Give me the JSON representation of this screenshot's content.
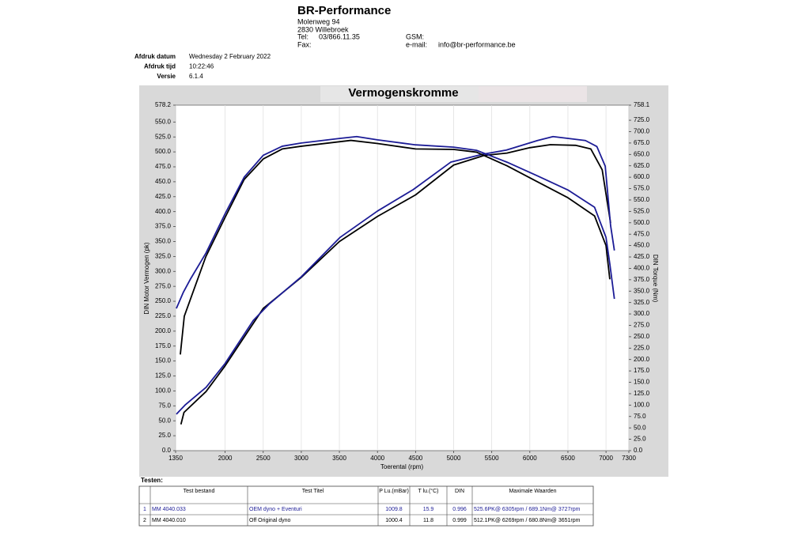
{
  "header": {
    "company": "BR-Performance",
    "street": "Molenweg 94",
    "city": "2830 Willebroek",
    "tel_label": "Tel:",
    "tel": "03/866.11.35",
    "fax_label": "Fax:",
    "gsm_label": "GSM:",
    "email_label": "e-mail:",
    "email": "info@br-performance.be"
  },
  "meta": {
    "rows": [
      [
        "Afdruk datum",
        "Wednesday 2 February 2022"
      ],
      [
        "Afdruk tijd",
        "10:22:46"
      ],
      [
        "Versie",
        "6.1.4"
      ]
    ]
  },
  "chart_data": {
    "type": "line",
    "title": "Vermogenskromme",
    "xlabel": "Toerental (rpm)",
    "ylabel": "DIN Motor Vermogen (pk)",
    "y2label": "DIN Torque (Nm)",
    "grid": true,
    "xlim": [
      1350,
      7300
    ],
    "xticks": [
      1350,
      2000,
      2500,
      3000,
      3500,
      4000,
      4500,
      5000,
      5500,
      6000,
      6500,
      7000,
      7300
    ],
    "ylim": [
      0,
      578.2
    ],
    "yticks": [
      {
        "value": 0,
        "label": "0.0"
      },
      {
        "value": 25,
        "label": "25.0"
      },
      {
        "value": 50,
        "label": "50.0"
      },
      {
        "value": 75,
        "label": "75.0"
      },
      {
        "value": 100,
        "label": "100.0"
      },
      {
        "value": 125,
        "label": "125.0"
      },
      {
        "value": 150,
        "label": "150.0"
      },
      {
        "value": 175,
        "label": "175.0"
      },
      {
        "value": 200,
        "label": "200.0"
      },
      {
        "value": 225,
        "label": "225.0"
      },
      {
        "value": 250,
        "label": "250.0"
      },
      {
        "value": 275,
        "label": "275.0"
      },
      {
        "value": 300,
        "label": "300.0"
      },
      {
        "value": 325,
        "label": "325.0"
      },
      {
        "value": 350,
        "label": "350.0"
      },
      {
        "value": 375,
        "label": "375.0"
      },
      {
        "value": 400,
        "label": "400.0"
      },
      {
        "value": 425,
        "label": "425.0"
      },
      {
        "value": 450,
        "label": "450.0"
      },
      {
        "value": 475,
        "label": "475.0"
      },
      {
        "value": 500,
        "label": "500.0"
      },
      {
        "value": 525,
        "label": "525.0"
      },
      {
        "value": 550,
        "label": "550.0"
      },
      578.2
    ],
    "y2lim": [
      0,
      758.1
    ],
    "y2ticks": [
      {
        "value": 0,
        "label": "0.0"
      },
      {
        "value": 25,
        "label": "25.0"
      },
      {
        "value": 50,
        "label": "50.0"
      },
      {
        "value": 75,
        "label": "75.0"
      },
      {
        "value": 100,
        "label": "100.0"
      },
      {
        "value": 125,
        "label": "125.0"
      },
      {
        "value": 150,
        "label": "150.0"
      },
      {
        "value": 175,
        "label": "175.0"
      },
      {
        "value": 200,
        "label": "200.0"
      },
      {
        "value": 225,
        "label": "225.0"
      },
      {
        "value": 250,
        "label": "250.0"
      },
      {
        "value": 275,
        "label": "275.0"
      },
      {
        "value": 300,
        "label": "300.0"
      },
      {
        "value": 325,
        "label": "325.0"
      },
      {
        "value": 350,
        "label": "350.0"
      },
      {
        "value": 375,
        "label": "375.0"
      },
      {
        "value": 400,
        "label": "400.0"
      },
      {
        "value": 425,
        "label": "425.0"
      },
      {
        "value": 450,
        "label": "450.0"
      },
      {
        "value": 475,
        "label": "475.0"
      },
      {
        "value": 500,
        "label": "500.0"
      },
      {
        "value": 525,
        "label": "525.0"
      },
      {
        "value": 550,
        "label": "550.0"
      },
      {
        "value": 575,
        "label": "575.0"
      },
      {
        "value": 600,
        "label": "600.0"
      },
      {
        "value": 625,
        "label": "625.0"
      },
      {
        "value": 650,
        "label": "650.0"
      },
      {
        "value": 675,
        "label": "675.0"
      },
      {
        "value": 700,
        "label": "700.0"
      },
      {
        "value": 725,
        "label": "725.0"
      },
      758.1
    ],
    "series": [
      {
        "color": "#000000",
        "x": [
          1420,
          1460,
          1750,
          2000,
          2500,
          3000,
          3500,
          4000,
          4500,
          5000,
          5400,
          5700,
          6000,
          6269,
          6600,
          6800,
          6950,
          7060
        ],
        "values": [
          44,
          64,
          99,
          142,
          238,
          290,
          350,
          392,
          428,
          478,
          494,
          498,
          507,
          512,
          511,
          505,
          470,
          381
        ]
      },
      {
        "color": "#1c1c96",
        "x": [
          1360,
          1480,
          1750,
          2000,
          2370,
          2575,
          3000,
          3510,
          4000,
          4470,
          4964,
          5380,
          5690,
          6100,
          6305,
          6730,
          6880,
          6990,
          7060,
          7110
        ],
        "values": [
          61,
          77,
          106,
          146,
          218,
          245,
          291,
          357,
          401,
          437,
          483,
          496,
          503,
          519,
          525.6,
          519,
          509,
          476,
          377,
          335
        ]
      },
      {
        "color": "#000000",
        "axis": "y2",
        "x": [
          1412,
          1464,
          1745,
          2000,
          2250,
          2500,
          2750,
          3000,
          3651,
          4000,
          4500,
          5000,
          5300,
          5700,
          6100,
          6500,
          6850,
          7000,
          7050
        ],
        "values": [
          211,
          295,
          425,
          512,
          595,
          640,
          662,
          668,
          680.8,
          674,
          662,
          661,
          655,
          625,
          590,
          555,
          515,
          450,
          376
        ]
      },
      {
        "color": "#1c1c96",
        "axis": "y2",
        "x": [
          1360,
          1450,
          1550,
          1750,
          2000,
          2250,
          2500,
          2750,
          3000,
          3500,
          3727,
          4000,
          4500,
          5000,
          5300,
          5700,
          6100,
          6500,
          6850,
          7000,
          7050,
          7110
        ],
        "values": [
          312,
          347,
          378,
          434,
          520,
          600,
          648,
          668,
          675,
          685,
          689.1,
          682,
          671,
          666,
          659,
          633,
          603,
          572,
          534,
          468,
          410,
          333
        ]
      }
    ]
  },
  "table": {
    "title": "Testen:",
    "header": [
      "Test bestand",
      "Test Titel",
      "P Lu.(mBar)",
      "T lu.(°C)",
      "DIN",
      "Maximale Waarden"
    ],
    "row_colors": [
      "#1c1c96",
      "#000000"
    ],
    "rows": [
      [
        "1",
        "MM 4040.033",
        "OEM dyno + Eventuri",
        "1009.8",
        "15.9",
        "0.996",
        "525.6PK@ 6305rpm / 689.1Nm@ 3727rpm"
      ],
      [
        "2",
        "MM 4040.010",
        "Off Original dyno",
        "1000.4",
        "11.8",
        "0.999",
        "512.1PK@ 6269rpm / 680.8Nm@ 3651rpm"
      ]
    ]
  }
}
